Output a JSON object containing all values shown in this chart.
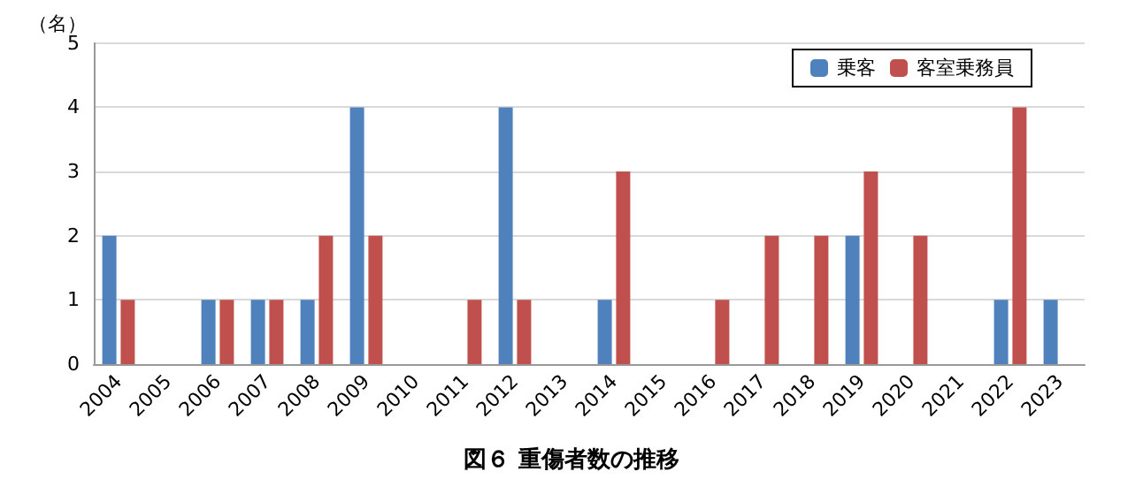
{
  "chart_data": {
    "type": "bar",
    "title": "図６ 重傷者数の推移",
    "ylabel": "（名）",
    "categories": [
      "2004",
      "2005",
      "2006",
      "2007",
      "2008",
      "2009",
      "2010",
      "2011",
      "2012",
      "2013",
      "2014",
      "2015",
      "2016",
      "2017",
      "2018",
      "2019",
      "2020",
      "2021",
      "2022",
      "2023"
    ],
    "series": [
      {
        "name": "乗客",
        "color": "#4f81bd",
        "values": [
          2,
          0,
          1,
          1,
          1,
          4,
          0,
          0,
          4,
          0,
          1,
          0,
          0,
          0,
          0,
          2,
          0,
          0,
          1,
          1
        ]
      },
      {
        "name": "客室乗務員",
        "color": "#c0504d",
        "values": [
          1,
          0,
          1,
          1,
          2,
          2,
          0,
          1,
          1,
          0,
          3,
          0,
          1,
          2,
          2,
          3,
          2,
          0,
          4,
          0
        ]
      }
    ],
    "ylim": [
      0,
      5
    ],
    "yticks": [
      0,
      1,
      2,
      3,
      4,
      5
    ],
    "grid": "y",
    "legend": "top right"
  }
}
